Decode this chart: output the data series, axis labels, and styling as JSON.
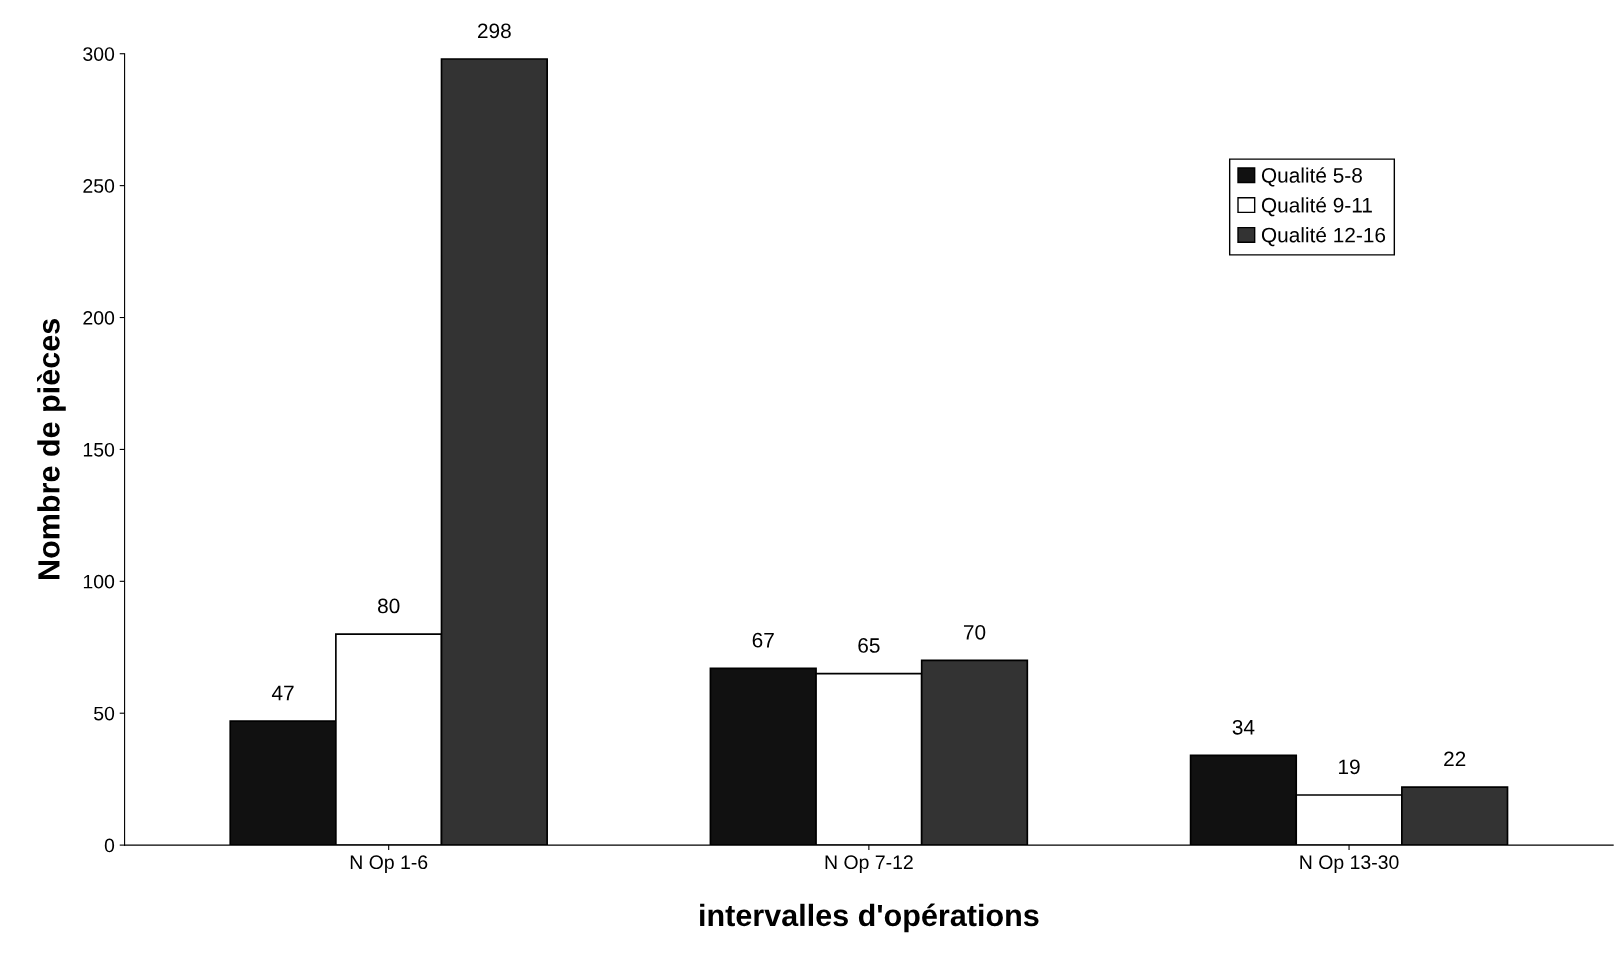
{
  "chart_data": {
    "type": "bar",
    "xlabel": "intervalles d'opérations",
    "ylabel": "Nombre de pièces",
    "categories": [
      "N Op 1-6",
      "N Op 7-12",
      "N Op 13-30"
    ],
    "series": [
      {
        "name": "Qualité 5-8",
        "color": "#111111",
        "values": [
          47,
          67,
          34
        ]
      },
      {
        "name": "Qualité 9-11",
        "color": "#ffffff",
        "values": [
          80,
          65,
          19
        ]
      },
      {
        "name": "Qualité 12-16",
        "color": "#333333",
        "values": [
          298,
          70,
          22
        ]
      }
    ],
    "ylim": [
      0,
      300
    ],
    "yticks": [
      0,
      50,
      100,
      150,
      200,
      250,
      300
    ],
    "data_labels": true,
    "legend": "top right",
    "grid": false
  }
}
